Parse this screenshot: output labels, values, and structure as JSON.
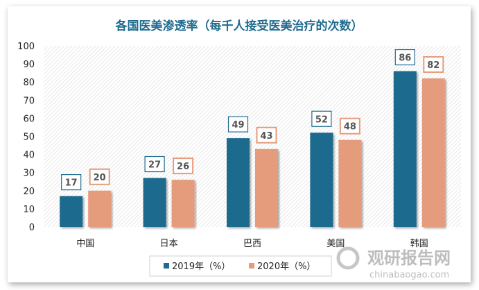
{
  "chart_data": {
    "type": "bar",
    "title": "各国医美渗透率（每千人接受医美治疗的次数）",
    "categories": [
      "中国",
      "日本",
      "巴西",
      "美国",
      "韩国"
    ],
    "series": [
      {
        "name": "2019年（%）",
        "color": "#1f6b8e",
        "values": [
          17,
          27,
          49,
          52,
          86
        ]
      },
      {
        "name": "2020年（%）",
        "color": "#e59c7c",
        "values": [
          20,
          26,
          43,
          48,
          82
        ]
      }
    ],
    "ylim": [
      0,
      100
    ],
    "yticks": [
      0,
      10,
      20,
      30,
      40,
      50,
      60,
      70,
      80,
      90,
      100
    ],
    "legend": "bottom"
  },
  "watermark": {
    "brand": "观研报告网",
    "url": "chinabaogao.com"
  }
}
